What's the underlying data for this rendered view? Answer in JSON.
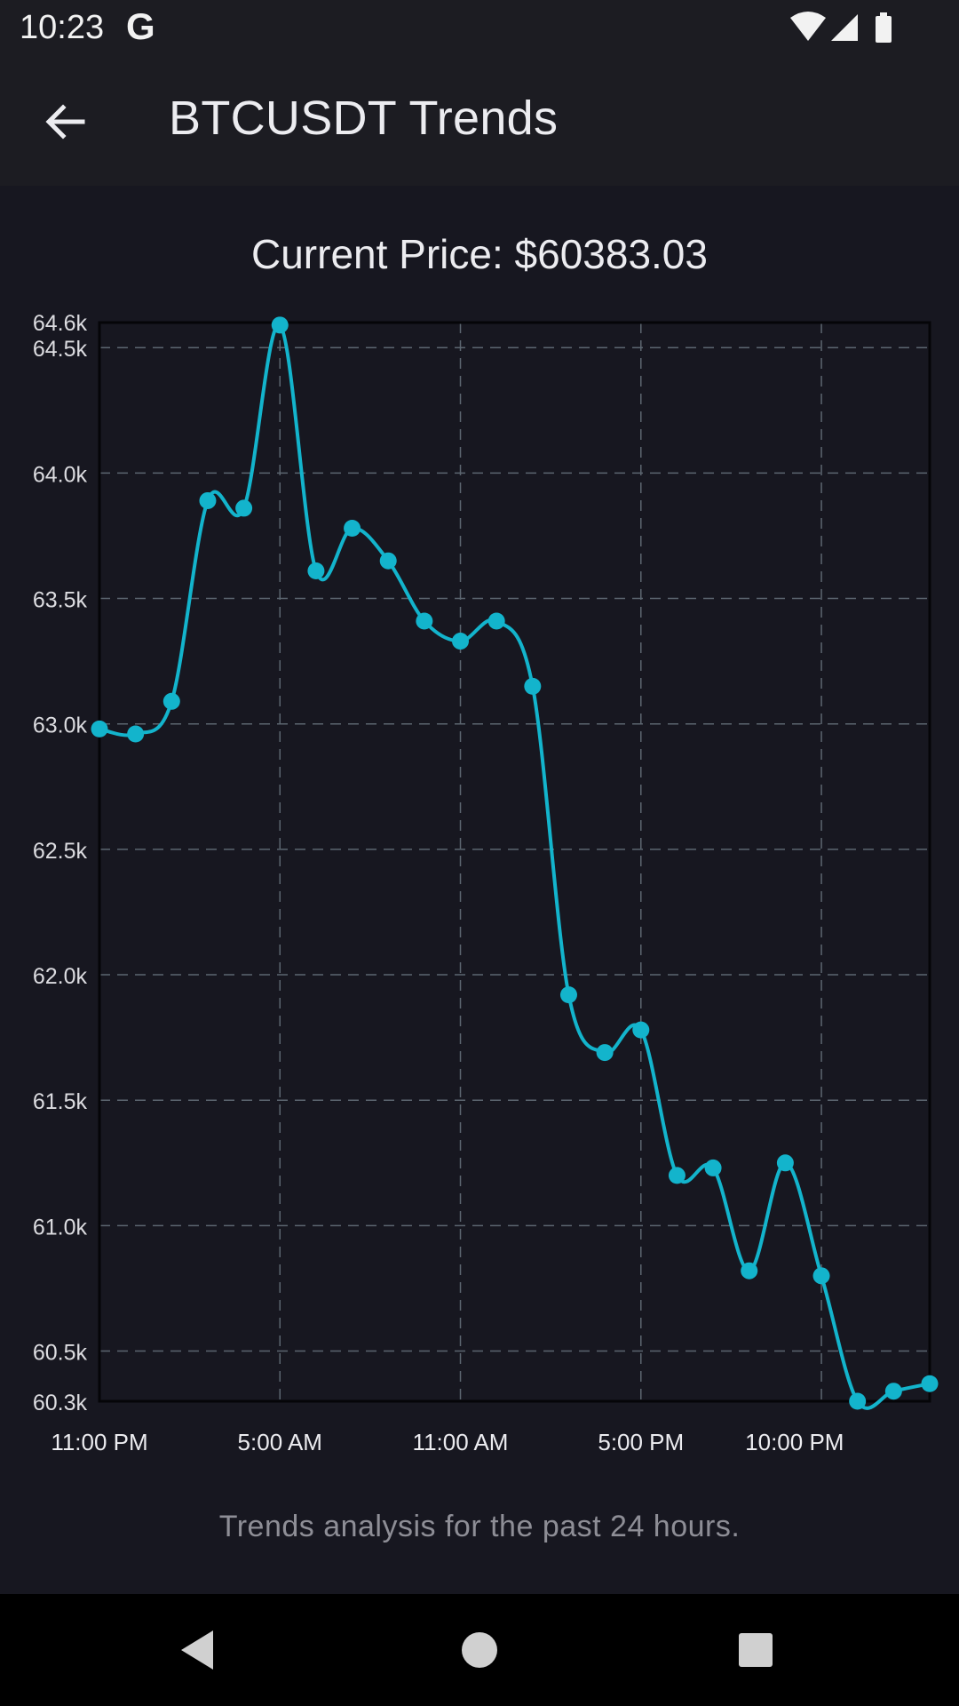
{
  "status_bar": {
    "time": "10:23",
    "g_logo": "G",
    "icons": [
      "wifi-icon",
      "signal-icon",
      "battery-icon"
    ]
  },
  "app_bar": {
    "title": "BTCUSDT Trends",
    "back_icon": "arrow-left-icon"
  },
  "current_price_text": "Current Price: $60383.03",
  "footnote": "Trends analysis for the past 24 hours.",
  "colors": {
    "line": "#13b4cc",
    "grid": "#5c6670",
    "background": "#171720",
    "bar": "#1c1c22"
  },
  "chart_data": {
    "type": "line",
    "title": "",
    "xlabel": "",
    "ylabel": "",
    "ylim": [
      60300,
      64600
    ],
    "y_ticks": [
      60500,
      61000,
      61500,
      62000,
      62500,
      63000,
      63500,
      64000,
      64500
    ],
    "y_tick_labels": [
      "60.5k",
      "61.0k",
      "61.5k",
      "62.0k",
      "62.5k",
      "63.0k",
      "63.5k",
      "64.0k",
      "64.5k"
    ],
    "y_min_label": "60.3k",
    "y_max_label": "64.6k",
    "x_tick_labels": [
      "11:00 PM",
      "5:00 AM",
      "11:00 AM",
      "5:00 PM",
      "10:00 PM"
    ],
    "x_tick_hours": [
      0,
      6,
      12,
      18,
      23
    ],
    "x_gridline_hours": [
      6,
      12,
      18,
      24
    ],
    "x_range_hours": [
      0,
      27.6
    ],
    "grid": true,
    "series": [
      {
        "x_hours": [
          0,
          1.2,
          2.4,
          3.6,
          4.8,
          6.0,
          7.2,
          8.4,
          9.6,
          10.8,
          12.0,
          13.2,
          14.4,
          15.6,
          16.8,
          18.0,
          19.2,
          20.4,
          21.6,
          22.8,
          24.0,
          25.2,
          26.4,
          27.6
        ],
        "values": [
          62980,
          62960,
          63090,
          63890,
          63860,
          64590,
          63610,
          63780,
          63650,
          63410,
          63330,
          63410,
          63150,
          61920,
          61690,
          61780,
          61200,
          61230,
          60820,
          61250,
          60800,
          60300,
          60340,
          60370
        ]
      }
    ]
  }
}
